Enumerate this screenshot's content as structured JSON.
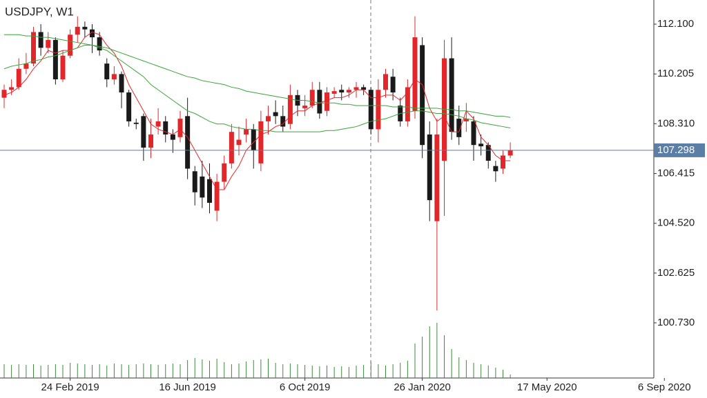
{
  "chart_data": {
    "type": "candlestick",
    "title": "USDJPY, W1",
    "categories": [
      null,
      null,
      null,
      null,
      null,
      null,
      null,
      null,
      null,
      "24 Feb 2019",
      null,
      null,
      null,
      null,
      null,
      null,
      null,
      null,
      null,
      null,
      null,
      null,
      null,
      null,
      null,
      "16 Jun 2019",
      null,
      null,
      null,
      null,
      null,
      null,
      null,
      null,
      null,
      null,
      null,
      null,
      null,
      null,
      null,
      "6 Oct 2019",
      null,
      null,
      null,
      null,
      null,
      null,
      null,
      null,
      null,
      null,
      null,
      null,
      null,
      null,
      null,
      "26 Jan 2020",
      null,
      null,
      null,
      null,
      null,
      null,
      null,
      null,
      null,
      null,
      null,
      null,
      null,
      null,
      null,
      null,
      "17 May 2020",
      null,
      null,
      null,
      null,
      null,
      null,
      null,
      null,
      null,
      null,
      null,
      null,
      null,
      null,
      null,
      "6 Sep 2020"
    ],
    "open": [
      109.3,
      109.6,
      109.7,
      110.4,
      110.6,
      111.8,
      111.2,
      111.5,
      110.0,
      110.9,
      111.7,
      112.0,
      111.9,
      111.6,
      110.6,
      110.0,
      110.2,
      109.5,
      108.35,
      108.6,
      107.4,
      108.2,
      108.4,
      107.9,
      107.8,
      108.6,
      106.5,
      106.3,
      106.2,
      105.0,
      106.1,
      106.8,
      107.5,
      107.9,
      108.1,
      106.8,
      108.4,
      108.75,
      108.6,
      108.3,
      109.4,
      108.9,
      109.0,
      109.6,
      108.8,
      109.45,
      109.6,
      109.5,
      109.6,
      109.7,
      109.6,
      108.1,
      109.6,
      110.1,
      109.0,
      108.4,
      108.8,
      111.3,
      107.9,
      104.6,
      106.9,
      110.8,
      108.5,
      108.4,
      108.4,
      107.55,
      107.5,
      106.7,
      106.6,
      107.1,
      null,
      null,
      null,
      null,
      null,
      null,
      null,
      null,
      null,
      null,
      null,
      null,
      null,
      null,
      null,
      null,
      null,
      null,
      null,
      null,
      null
    ],
    "high": [
      109.8,
      110.0,
      110.8,
      111.0,
      112.0,
      112.1,
      111.8,
      111.6,
      111.1,
      111.9,
      112.4,
      112.2,
      112.1,
      111.8,
      110.8,
      110.5,
      110.3,
      109.6,
      108.5,
      108.7,
      108.5,
      108.9,
      108.6,
      108.1,
      108.8,
      109.3,
      106.7,
      106.9,
      106.8,
      106.4,
      107.1,
      108.3,
      108.2,
      108.5,
      108.3,
      108.8,
      109.0,
      109.2,
      109.0,
      109.8,
      109.6,
      109.4,
      109.9,
      109.9,
      109.7,
      109.7,
      109.8,
      109.7,
      109.9,
      109.8,
      109.7,
      110.0,
      110.4,
      110.4,
      109.3,
      110.0,
      112.4,
      111.6,
      108.4,
      108.5,
      111.5,
      111.6,
      109.0,
      109.1,
      108.6,
      107.9,
      107.6,
      106.9,
      107.3,
      107.6,
      null,
      null,
      null,
      null,
      null,
      null,
      null,
      null,
      null,
      null,
      null,
      null,
      null,
      null,
      null,
      null,
      null,
      null,
      null,
      null,
      null
    ],
    "low": [
      108.9,
      109.4,
      109.6,
      110.2,
      110.5,
      110.9,
      111.0,
      109.8,
      109.9,
      110.8,
      111.4,
      111.6,
      111.0,
      110.9,
      109.7,
      109.8,
      108.9,
      108.2,
      108.1,
      106.9,
      107.0,
      107.9,
      107.6,
      107.2,
      107.6,
      106.2,
      105.2,
      105.1,
      104.9,
      104.6,
      105.8,
      106.6,
      107.1,
      107.6,
      106.6,
      106.5,
      107.9,
      108.3,
      108.0,
      108.1,
      108.6,
      108.6,
      108.9,
      108.5,
      108.6,
      109.3,
      109.2,
      109.3,
      109.3,
      109.4,
      107.9,
      107.6,
      109.3,
      109.2,
      108.2,
      108.2,
      108.5,
      107.0,
      104.6,
      101.2,
      104.8,
      107.7,
      107.5,
      108.0,
      106.9,
      107.1,
      106.6,
      106.1,
      106.4,
      107.0,
      null,
      null,
      null,
      null,
      null,
      null,
      null,
      null,
      null,
      null,
      null,
      null,
      null,
      null,
      null,
      null,
      null,
      null,
      null,
      null,
      null
    ],
    "close": [
      109.6,
      109.7,
      110.4,
      110.6,
      111.8,
      111.2,
      111.5,
      110.0,
      110.9,
      111.7,
      112.0,
      111.9,
      111.6,
      111.1,
      110.0,
      110.2,
      109.5,
      108.4,
      108.3,
      107.4,
      107.9,
      108.4,
      107.9,
      107.7,
      108.5,
      106.6,
      105.7,
      105.5,
      105.3,
      106.1,
      106.8,
      108.0,
      107.7,
      108.1,
      107.3,
      108.4,
      108.6,
      108.6,
      108.2,
      109.4,
      109.0,
      109.0,
      109.6,
      108.7,
      109.5,
      109.55,
      109.5,
      109.6,
      109.7,
      109.6,
      108.1,
      109.6,
      110.2,
      109.5,
      108.4,
      109.7,
      111.6,
      107.5,
      105.4,
      107.9,
      110.8,
      108.0,
      107.8,
      108.5,
      107.5,
      107.45,
      106.9,
      106.5,
      107.1,
      107.3,
      null,
      null,
      null,
      null,
      null,
      null,
      null,
      null,
      null,
      null,
      null,
      null,
      null,
      null,
      null,
      null,
      null,
      null,
      null,
      null,
      null
    ],
    "up_color": "#e3262a",
    "down_color": "#1a1a1a",
    "lines": [
      {
        "color": "#e3262a",
        "values": [
          109.4,
          109.5,
          109.7,
          110.0,
          110.4,
          110.7,
          111.1,
          111.0,
          111.1,
          111.1,
          111.2,
          111.6,
          111.8,
          111.7,
          111.3,
          111.0,
          110.5,
          109.8,
          109.3,
          108.8,
          108.3,
          108.1,
          108.0,
          107.9,
          108.1,
          107.8,
          107.3,
          106.8,
          106.3,
          105.8,
          105.8,
          106.3,
          106.7,
          107.3,
          107.6,
          107.9,
          108.0,
          108.2,
          108.3,
          108.6,
          108.8,
          108.8,
          109.0,
          109.1,
          109.2,
          109.3,
          109.3,
          109.4,
          109.6,
          109.6,
          109.3,
          109.3,
          109.4,
          109.4,
          109.2,
          109.5,
          110.0,
          109.8,
          108.9,
          108.4,
          108.6,
          108.0,
          108.0,
          108.8,
          108.5,
          107.8,
          107.5,
          107.1,
          106.9,
          106.9,
          null,
          null,
          null,
          null,
          null,
          null,
          null,
          null,
          null,
          null,
          null,
          null,
          null,
          null,
          null,
          null,
          null,
          null,
          null,
          null,
          null
        ]
      },
      {
        "color": "#3aa33a",
        "values": [
          111.7,
          111.7,
          111.7,
          111.65,
          111.65,
          111.6,
          111.6,
          111.55,
          111.5,
          111.45,
          111.4,
          111.35,
          111.3,
          111.25,
          111.2,
          111.1,
          111.0,
          110.9,
          110.8,
          110.7,
          110.6,
          110.5,
          110.4,
          110.3,
          110.2,
          110.1,
          110.05,
          109.95,
          109.9,
          109.85,
          109.8,
          109.7,
          109.65,
          109.55,
          109.5,
          109.45,
          109.4,
          109.35,
          109.3,
          109.25,
          109.2,
          109.2,
          109.15,
          109.1,
          109.1,
          109.1,
          109.05,
          109.05,
          109.0,
          109.0,
          109.0,
          109.0,
          109.0,
          108.95,
          108.95,
          108.95,
          108.9,
          108.9,
          108.9,
          108.9,
          108.85,
          108.85,
          108.8,
          108.8,
          108.75,
          108.7,
          108.65,
          108.6,
          108.6,
          108.55,
          null,
          null,
          null,
          null,
          null,
          null,
          null,
          null,
          null,
          null,
          null,
          null,
          null,
          null,
          null,
          null,
          null,
          null,
          null,
          null,
          null
        ]
      },
      {
        "color": "#3aa33a",
        "values": [
          110.4,
          110.5,
          110.55,
          110.6,
          110.7,
          110.75,
          110.85,
          110.9,
          111.0,
          111.1,
          111.2,
          111.3,
          111.3,
          111.2,
          111.1,
          110.9,
          110.7,
          110.5,
          110.3,
          110.1,
          109.8,
          109.6,
          109.4,
          109.2,
          109.0,
          108.8,
          108.7,
          108.55,
          108.4,
          108.3,
          108.3,
          108.2,
          108.15,
          108.1,
          108.1,
          108.05,
          108.05,
          108.0,
          108.0,
          108.0,
          108.0,
          108.0,
          108.0,
          108.0,
          108.05,
          108.05,
          108.1,
          108.15,
          108.2,
          108.3,
          108.4,
          108.45,
          108.5,
          108.6,
          108.7,
          108.75,
          108.8,
          108.8,
          108.75,
          108.7,
          108.7,
          108.65,
          108.6,
          108.5,
          108.45,
          108.35,
          108.3,
          108.25,
          108.2,
          108.15,
          null,
          null,
          null,
          null,
          null,
          null,
          null,
          null,
          null,
          null,
          null,
          null,
          null,
          null,
          null,
          null,
          null,
          null,
          null,
          null,
          null
        ]
      }
    ],
    "volume": [
      20,
      19,
      20,
      19,
      20,
      18,
      19,
      20,
      19,
      22,
      21,
      20,
      19,
      20,
      18,
      21,
      20,
      19,
      20,
      21,
      20,
      19,
      20,
      21,
      20,
      26,
      29,
      27,
      25,
      28,
      23,
      20,
      21,
      24,
      26,
      27,
      28,
      22,
      20,
      21,
      20,
      19,
      18,
      17,
      18,
      16,
      17,
      16,
      18,
      19,
      24,
      20,
      18,
      20,
      22,
      25,
      50,
      60,
      75,
      80,
      62,
      42,
      30,
      26,
      22,
      20,
      18,
      15,
      12,
      5,
      null,
      null,
      null,
      null,
      null,
      null,
      null,
      null,
      null,
      null,
      null,
      null,
      null,
      null,
      null,
      null,
      null,
      null,
      null,
      null,
      null
    ],
    "volume_color": "#3a8a3a",
    "vlim": [
      0,
      100
    ],
    "ylim": [
      98.63,
      113.02
    ],
    "yticks": [
      {
        "value": 112.1,
        "label": "112.100"
      },
      {
        "value": 110.205,
        "label": "110.205"
      },
      {
        "value": 108.31,
        "label": "108.310"
      },
      {
        "value": 106.415,
        "label": "106.415"
      },
      {
        "value": 104.52,
        "label": "104.520"
      },
      {
        "value": 102.625,
        "label": "102.625"
      },
      {
        "value": 100.73,
        "label": "100.730"
      }
    ],
    "last_price": 107.298,
    "last_price_color": "#5b7ea6"
  }
}
